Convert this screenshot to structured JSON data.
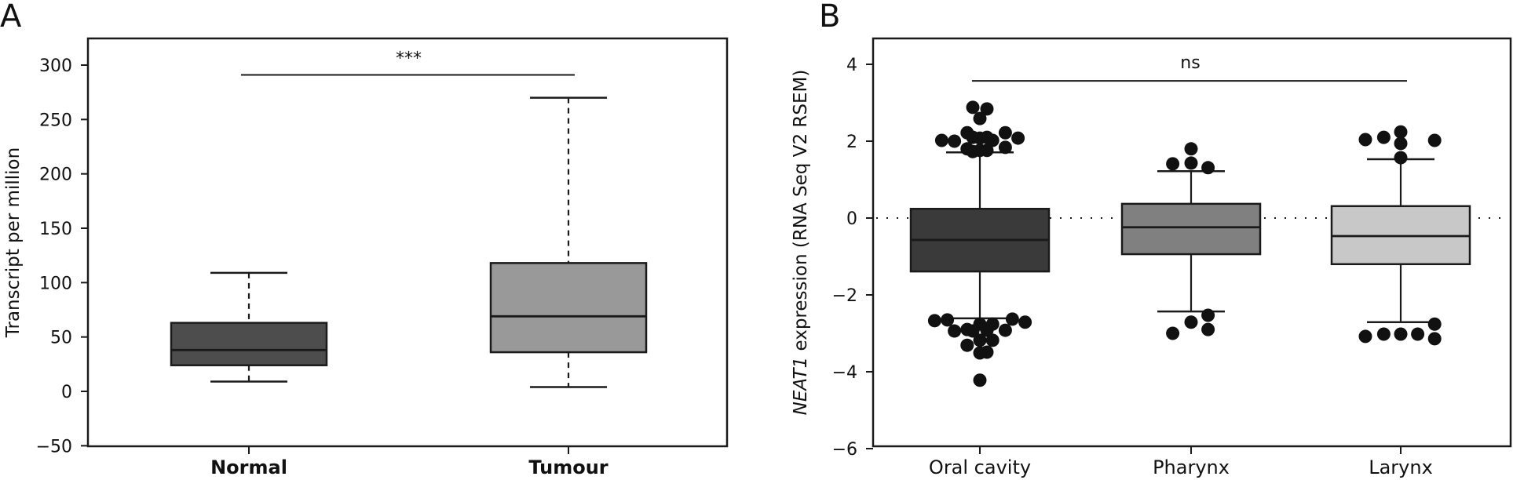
{
  "chart_data": [
    {
      "panel": "A",
      "type": "box",
      "title": "",
      "xlabel": "",
      "ylabel": "Transcript per million",
      "ylim": [
        -50,
        325
      ],
      "yticks": [
        -50,
        0,
        50,
        100,
        150,
        200,
        250,
        300
      ],
      "ytick_labels": [
        "−50",
        "0",
        "50",
        "100",
        "150",
        "200",
        "250",
        "300"
      ],
      "categories": [
        "Normal",
        "Tumour"
      ],
      "category_label_weight": "bold",
      "whisker_style": "dashed",
      "boxes": [
        {
          "name": "Normal",
          "whisker_low": 9,
          "q1": 24,
          "median": 38,
          "q3": 63,
          "whisker_high": 109,
          "color": "#4d4d4d",
          "outliers": []
        },
        {
          "name": "Tumour",
          "whisker_low": 4,
          "q1": 36,
          "median": 69,
          "q3": 118,
          "whisker_high": 270,
          "color": "#999999",
          "outliers": []
        }
      ],
      "significance": {
        "from": "Normal",
        "to": "Tumour",
        "y": 291,
        "label": "***"
      },
      "reference_line": null,
      "grid": false
    },
    {
      "panel": "B",
      "type": "box",
      "title": "",
      "xlabel": "",
      "ylabel_italic": "NEAT1",
      "ylabel_rest": " expression (RNA Seq V2 RSEM)",
      "ylim": [
        -6,
        4.7
      ],
      "yticks": [
        -6,
        -4,
        -2,
        0,
        2,
        4
      ],
      "ytick_labels": [
        "−6",
        "−4",
        "−2",
        "0",
        "2",
        "4"
      ],
      "categories": [
        "Oral cavity",
        "Pharynx",
        "Larynx"
      ],
      "category_label_weight": "normal",
      "whisker_style": "solid",
      "boxes": [
        {
          "name": "Oral cavity",
          "whisker_low": -2.61,
          "q1": -1.39,
          "median": -0.57,
          "q3": 0.24,
          "whisker_high": 1.71,
          "color": "#3a3a3a",
          "outliers": [
            {
              "dx": -0.27,
              "y": 2.02
            },
            {
              "dx": -0.18,
              "y": 2.0
            },
            {
              "dx": -0.09,
              "y": 2.22
            },
            {
              "dx": -0.09,
              "y": 1.8
            },
            {
              "dx": -0.05,
              "y": 2.88
            },
            {
              "dx": -0.05,
              "y": 2.1
            },
            {
              "dx": -0.05,
              "y": 1.73
            },
            {
              "dx": 0.0,
              "y": 2.59
            },
            {
              "dx": 0.0,
              "y": 2.08
            },
            {
              "dx": 0.0,
              "y": 1.76
            },
            {
              "dx": 0.05,
              "y": 2.84
            },
            {
              "dx": 0.05,
              "y": 2.1
            },
            {
              "dx": 0.05,
              "y": 1.76
            },
            {
              "dx": 0.09,
              "y": 2.02
            },
            {
              "dx": 0.18,
              "y": 2.22
            },
            {
              "dx": 0.18,
              "y": 1.84
            },
            {
              "dx": 0.27,
              "y": 2.08
            },
            {
              "dx": -0.32,
              "y": -2.67
            },
            {
              "dx": -0.23,
              "y": -2.65
            },
            {
              "dx": -0.18,
              "y": -2.94
            },
            {
              "dx": -0.09,
              "y": -2.9
            },
            {
              "dx": -0.09,
              "y": -3.31
            },
            {
              "dx": -0.05,
              "y": -2.94
            },
            {
              "dx": 0.0,
              "y": -2.76
            },
            {
              "dx": 0.0,
              "y": -3.18
            },
            {
              "dx": 0.0,
              "y": -3.51
            },
            {
              "dx": 0.0,
              "y": -4.22
            },
            {
              "dx": 0.05,
              "y": -2.92
            },
            {
              "dx": 0.05,
              "y": -3.49
            },
            {
              "dx": 0.09,
              "y": -2.76
            },
            {
              "dx": 0.09,
              "y": -3.18
            },
            {
              "dx": 0.18,
              "y": -2.92
            },
            {
              "dx": 0.23,
              "y": -2.63
            },
            {
              "dx": 0.32,
              "y": -2.71
            }
          ]
        },
        {
          "name": "Pharynx",
          "whisker_low": -2.43,
          "q1": -0.94,
          "median": -0.24,
          "q3": 0.37,
          "whisker_high": 1.22,
          "color": "#808080",
          "outliers": [
            {
              "dx": -0.13,
              "y": 1.41
            },
            {
              "dx": 0.0,
              "y": 1.8
            },
            {
              "dx": 0.0,
              "y": 1.43
            },
            {
              "dx": 0.12,
              "y": 1.31
            },
            {
              "dx": 0.0,
              "y": -2.71
            },
            {
              "dx": 0.12,
              "y": -2.53
            },
            {
              "dx": 0.12,
              "y": -2.9
            },
            {
              "dx": -0.13,
              "y": -3.0
            }
          ]
        },
        {
          "name": "Larynx",
          "whisker_low": -2.71,
          "q1": -1.2,
          "median": -0.47,
          "q3": 0.31,
          "whisker_high": 1.53,
          "color": "#c8c8c8",
          "outliers": [
            {
              "dx": -0.25,
              "y": 2.04
            },
            {
              "dx": -0.12,
              "y": 2.1
            },
            {
              "dx": 0.0,
              "y": 2.24
            },
            {
              "dx": 0.0,
              "y": 1.94
            },
            {
              "dx": 0.0,
              "y": 1.57
            },
            {
              "dx": 0.24,
              "y": 2.02
            },
            {
              "dx": -0.25,
              "y": -3.08
            },
            {
              "dx": -0.12,
              "y": -3.02
            },
            {
              "dx": 0.0,
              "y": -3.02
            },
            {
              "dx": 0.12,
              "y": -3.02
            },
            {
              "dx": 0.24,
              "y": -2.76
            },
            {
              "dx": 0.24,
              "y": -3.14
            }
          ]
        }
      ],
      "significance": {
        "from": "Oral cavity",
        "to": "Larynx",
        "y": 3.57,
        "label": "ns"
      },
      "reference_line": {
        "y": 0,
        "style": "dotted"
      },
      "grid": false
    }
  ],
  "panels": {
    "a_label": "A",
    "b_label": "B"
  }
}
